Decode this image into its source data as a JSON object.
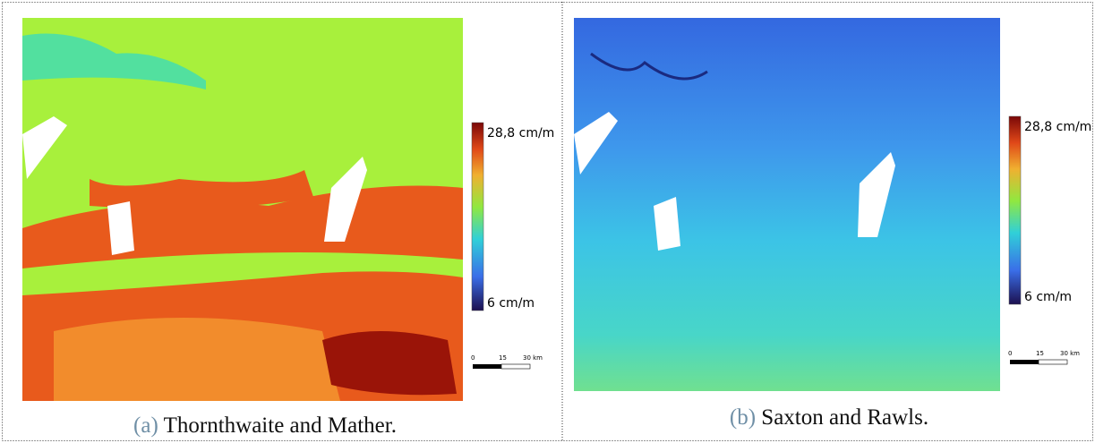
{
  "panels": [
    {
      "label": "(a)",
      "caption": "Thornthwaite and Mather.",
      "colorbar": {
        "max": "28,8 cm/m",
        "min": "6 cm/m"
      },
      "scalebar": [
        "0",
        "15",
        "30 km"
      ]
    },
    {
      "label": "(b)",
      "caption": "Saxton and Rawls.",
      "colorbar": {
        "max": "28,8 cm/m",
        "min": "6 cm/m"
      },
      "scalebar": [
        "0",
        "15",
        "30 km"
      ]
    }
  ]
}
